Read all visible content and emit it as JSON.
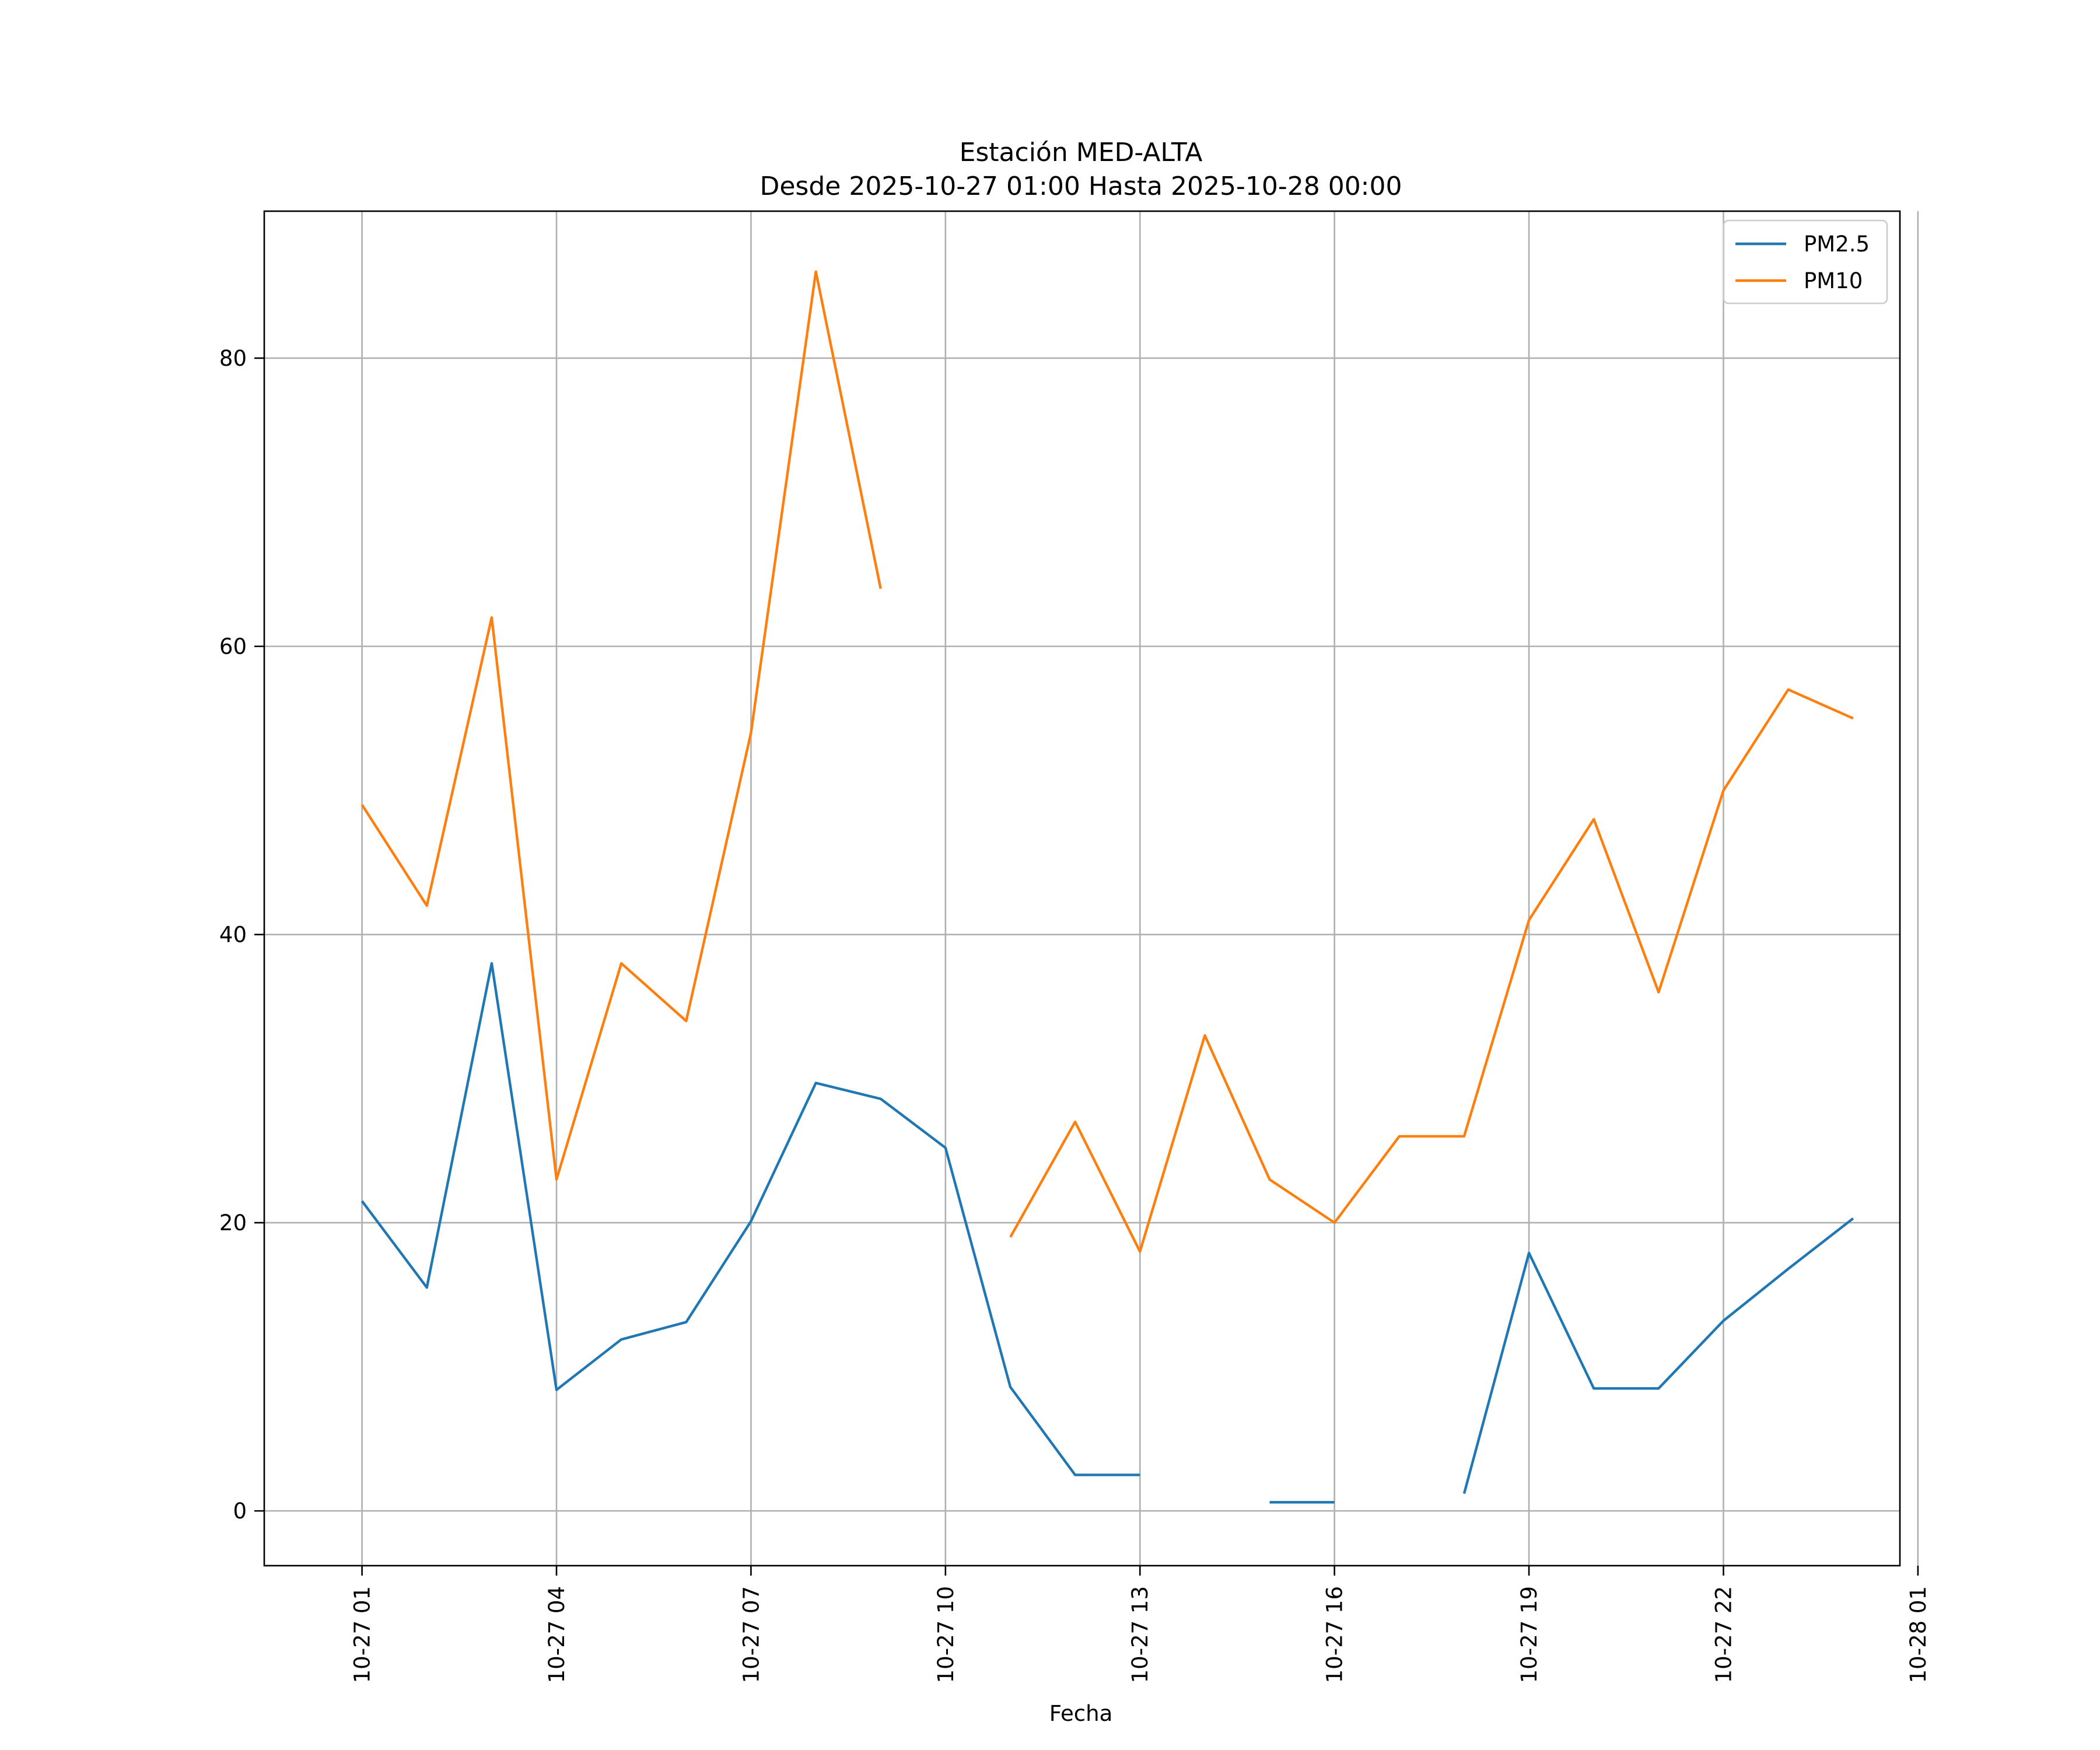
{
  "chart_data": {
    "type": "line",
    "title": "Estación MED-ALTA",
    "subtitle": "Desde 2025-10-27 01:00 Hasta 2025-10-28 00:00",
    "xlabel": "Fecha",
    "ylabel": "",
    "x_tick_labels": [
      "10-27 01",
      "10-27 04",
      "10-27 07",
      "10-27 10",
      "10-27 13",
      "10-27 16",
      "10-27 19",
      "10-27 22",
      "10-28 01"
    ],
    "y_tick_labels": [
      "0",
      "20",
      "40",
      "60",
      "80"
    ],
    "ylim": [
      -3.8,
      90.2
    ],
    "xlim": [
      "2025-10-27 -0:09",
      "2025-10-28 01:14"
    ],
    "grid": true,
    "legend_position": "top-right",
    "x": [
      "2025-10-27 01:00",
      "2025-10-27 02:00",
      "2025-10-27 03:00",
      "2025-10-27 04:00",
      "2025-10-27 05:00",
      "2025-10-27 06:00",
      "2025-10-27 07:00",
      "2025-10-27 08:00",
      "2025-10-27 09:00",
      "2025-10-27 10:00",
      "2025-10-27 11:00",
      "2025-10-27 12:00",
      "2025-10-27 13:00",
      "2025-10-27 14:00",
      "2025-10-27 15:00",
      "2025-10-27 16:00",
      "2025-10-27 17:00",
      "2025-10-27 18:00",
      "2025-10-27 19:00",
      "2025-10-27 20:00",
      "2025-10-27 21:00",
      "2025-10-27 22:00",
      "2025-10-27 23:00",
      "2025-10-28 00:00"
    ],
    "series": [
      {
        "name": "PM2.5",
        "color": "#1f77b4",
        "values": [
          21.5,
          15.5,
          38.0,
          8.4,
          11.9,
          13.1,
          20.1,
          29.7,
          28.6,
          25.2,
          8.6,
          2.5,
          2.5,
          null,
          0.6,
          0.6,
          null,
          1.2,
          17.9,
          8.5,
          8.5,
          13.2,
          16.8,
          20.3
        ]
      },
      {
        "name": "PM10",
        "color": "#ff7f0e",
        "values": [
          49,
          42,
          62,
          23,
          38,
          34,
          54,
          86,
          64,
          null,
          19,
          27,
          18,
          33,
          23,
          20,
          26,
          26,
          41,
          48,
          36,
          50,
          57,
          55
        ]
      }
    ]
  }
}
